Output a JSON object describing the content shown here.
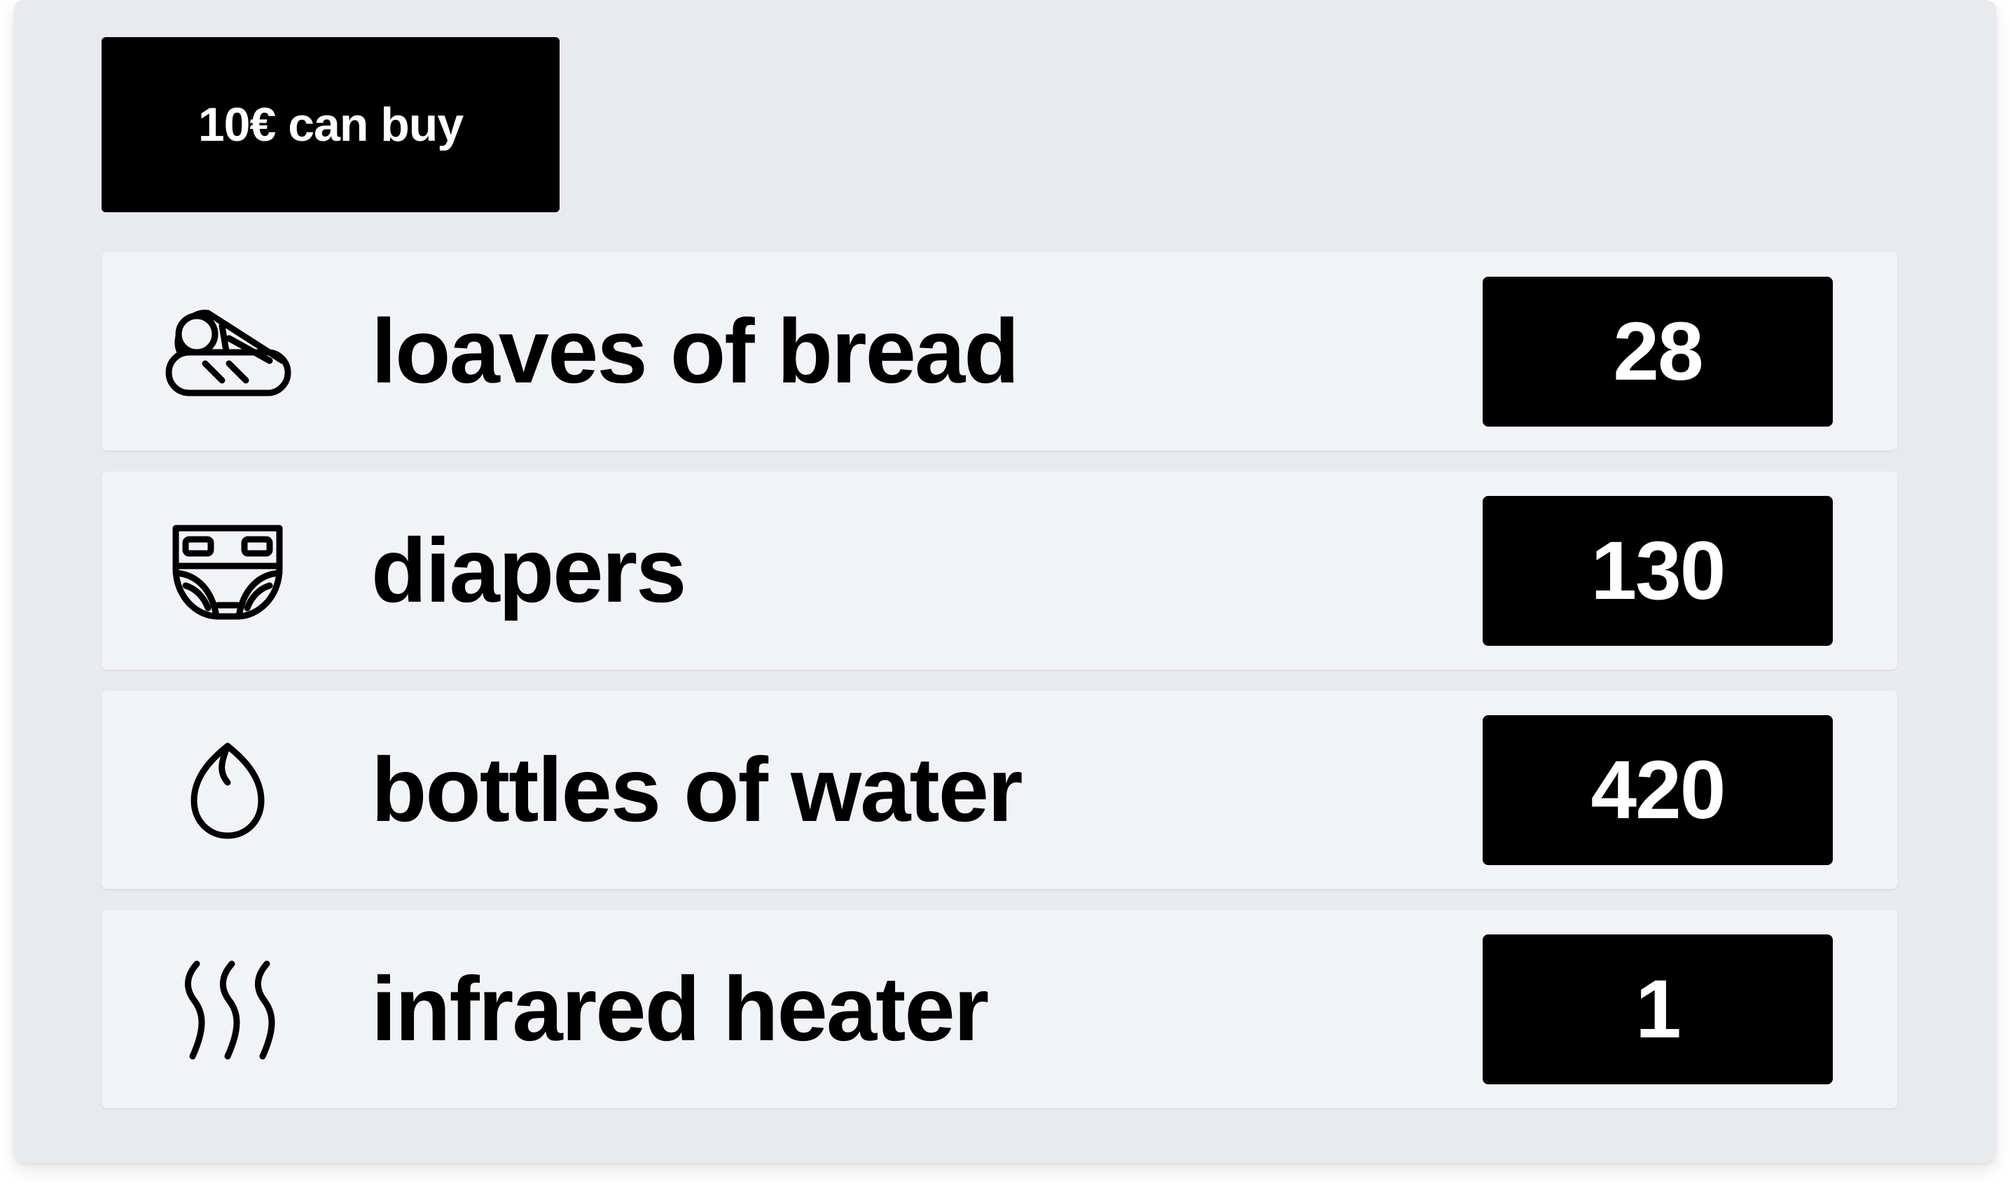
{
  "heading": "10€ can buy",
  "items": [
    {
      "icon": "bread-icon",
      "label": "loaves of bread",
      "value": "28"
    },
    {
      "icon": "diaper-icon",
      "label": "diapers",
      "value": "130"
    },
    {
      "icon": "water-drop-icon",
      "label": "bottles of water",
      "value": "420"
    },
    {
      "icon": "heat-waves-icon",
      "label": "infrared heater",
      "value": "1"
    }
  ]
}
